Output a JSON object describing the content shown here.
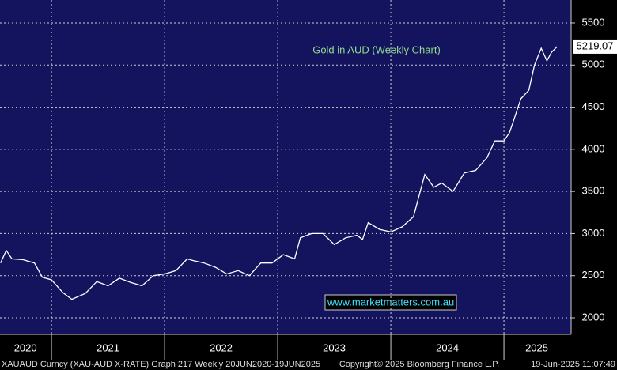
{
  "chart_data": {
    "type": "line",
    "title": "Gold in AUD (Weekly Chart)",
    "watermark": "www.marketmatters.com.au",
    "footer": [
      "XAUAUD Curncy (XAU-AUD X-RATE) Graph 217  Weekly 20JUN2020-19JUN2025",
      "Copyright© 2025 Bloomberg Finance L.P.",
      "19-Jun-2025 11:07:49"
    ],
    "x": [
      2020.55,
      2020.6,
      2020.65,
      2020.75,
      2020.85,
      2020.92,
      2021.0,
      2021.1,
      2021.18,
      2021.3,
      2021.4,
      2021.5,
      2021.6,
      2021.7,
      2021.8,
      2021.9,
      2022.0,
      2022.1,
      2022.2,
      2022.25,
      2022.35,
      2022.45,
      2022.55,
      2022.65,
      2022.75,
      2022.85,
      2022.95,
      2023.05,
      2023.15,
      2023.2,
      2023.3,
      2023.4,
      2023.5,
      2023.6,
      2023.7,
      2023.75,
      2023.8,
      2023.9,
      2024.0,
      2024.1,
      2024.2,
      2024.25,
      2024.3,
      2024.38,
      2024.45,
      2024.55,
      2024.65,
      2024.75,
      2024.85,
      2024.92,
      2025.0,
      2025.05,
      2025.1,
      2025.15,
      2025.22,
      2025.27,
      2025.33,
      2025.38,
      2025.42,
      2025.47
    ],
    "values": [
      2650,
      2800,
      2700,
      2690,
      2650,
      2480,
      2450,
      2300,
      2220,
      2290,
      2430,
      2380,
      2470,
      2420,
      2380,
      2500,
      2520,
      2560,
      2700,
      2680,
      2650,
      2600,
      2520,
      2560,
      2500,
      2650,
      2650,
      2750,
      2700,
      2950,
      3000,
      3000,
      2870,
      2950,
      2980,
      2930,
      3130,
      3050,
      3020,
      3080,
      3200,
      3450,
      3700,
      3550,
      3600,
      3500,
      3720,
      3750,
      3900,
      4100,
      4100,
      4200,
      4400,
      4600,
      4700,
      5000,
      5200,
      5050,
      5150,
      5219.07
    ],
    "color": "#ffffff",
    "xlim": [
      2020.545,
      2025.594
    ],
    "xticks": [
      {
        "value": 2020.77,
        "label": "2020"
      },
      {
        "value": 2021.5,
        "label": "2021"
      },
      {
        "value": 2022.5,
        "label": "2022"
      },
      {
        "value": 2023.5,
        "label": "2023"
      },
      {
        "value": 2024.5,
        "label": "2024"
      },
      {
        "value": 2025.29,
        "label": "2025"
      }
    ],
    "xgrid": [
      2021,
      2022,
      2023,
      2024,
      2025
    ],
    "ylim": [
      1803,
      5772
    ],
    "yticks": [
      2000,
      2500,
      3000,
      3500,
      4000,
      4500,
      5000,
      5500
    ],
    "grid": true
  }
}
